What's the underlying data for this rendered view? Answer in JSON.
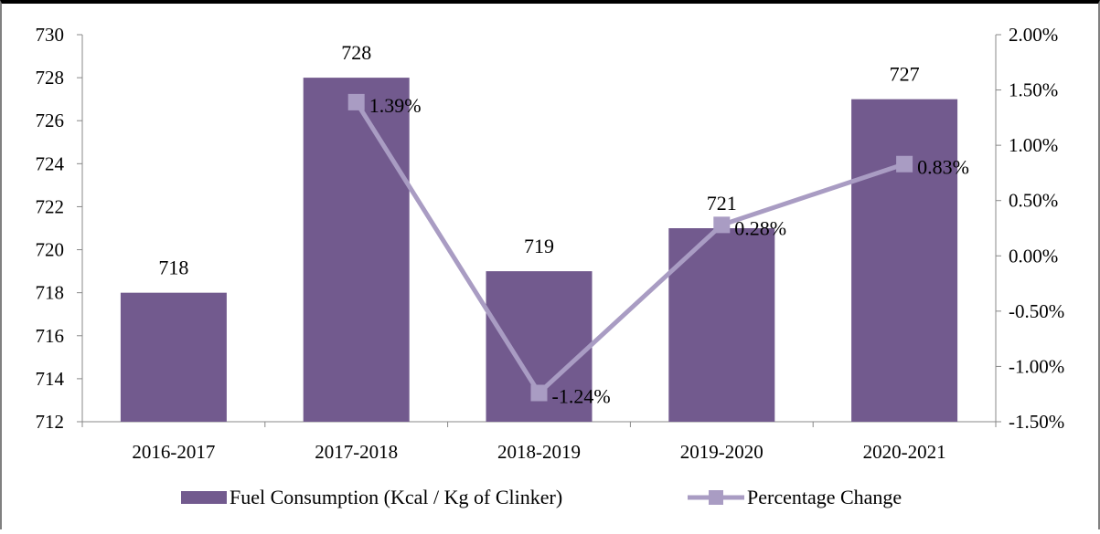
{
  "chart_data": {
    "type": "bar",
    "title": "",
    "xlabel": "",
    "ylabel": "",
    "categories": [
      "2016-2017",
      "2017-2018",
      "2018-2019",
      "2019-2020",
      "2020-2021"
    ],
    "series": [
      {
        "name": "Fuel Consumption (Kcal / Kg of Clinker)",
        "type": "bar",
        "axis": "left",
        "color": "#725a8e",
        "values": [
          718,
          728,
          719,
          721,
          727
        ],
        "labels": [
          "718",
          "728",
          "719",
          "721",
          "727"
        ]
      },
      {
        "name": "Percentage Change",
        "type": "line",
        "axis": "right",
        "marker": "square",
        "color": "#a99cc3",
        "values": [
          null,
          1.39,
          -1.24,
          0.28,
          0.83
        ],
        "labels": [
          "",
          "1.39%",
          "-1.24%",
          "0.28%",
          "0.83%"
        ]
      }
    ],
    "ylim": [
      712,
      730
    ],
    "yticks": [
      "712",
      "714",
      "716",
      "718",
      "720",
      "722",
      "724",
      "726",
      "728",
      "730"
    ],
    "y2lim": [
      -1.5,
      2.0
    ],
    "y2ticks": [
      "-1.50%",
      "-1.00%",
      "-0.50%",
      "0.00%",
      "0.50%",
      "1.00%",
      "1.50%",
      "2.00%"
    ],
    "grid": false,
    "legend": "bottom"
  }
}
